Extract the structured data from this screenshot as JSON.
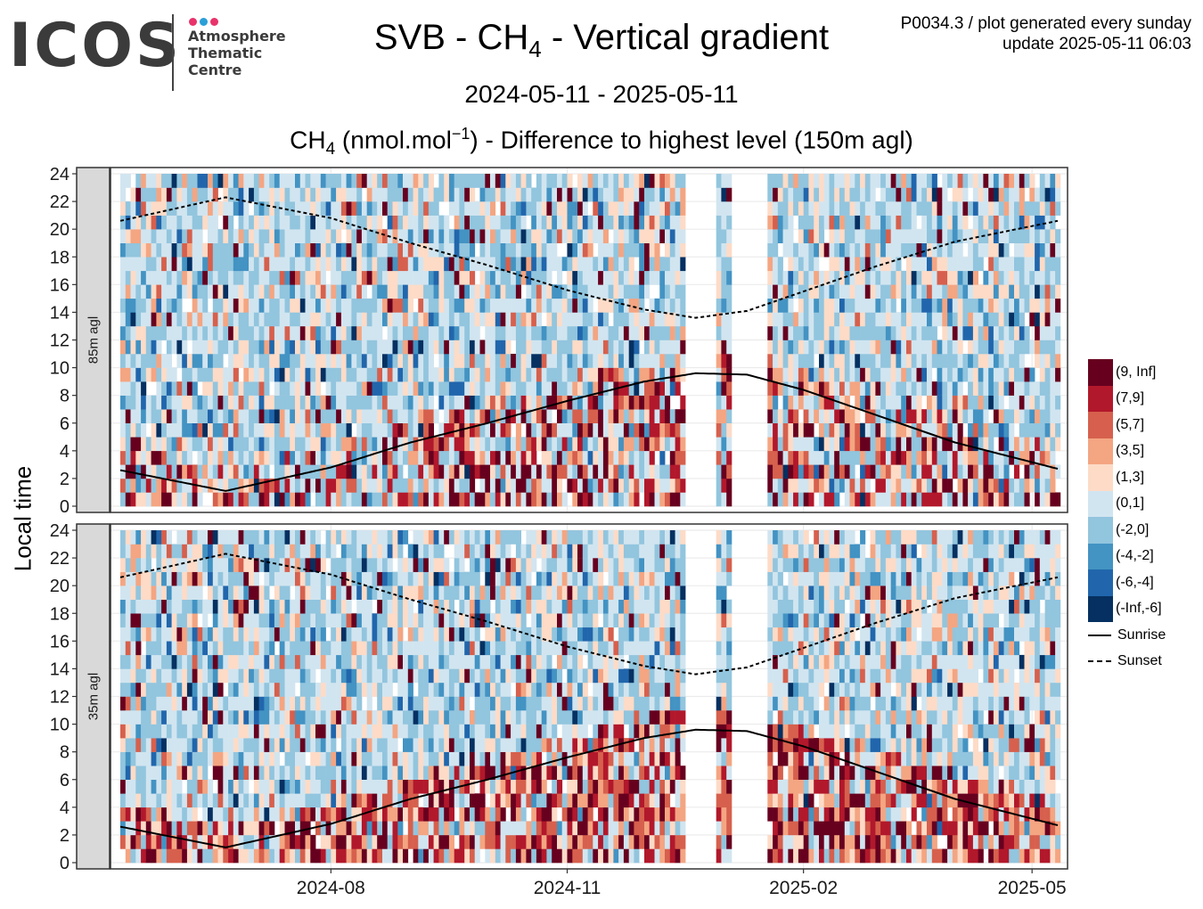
{
  "logo": {
    "wordmark": "ICOS",
    "lines": [
      "Atmosphere",
      "Thematic",
      "Centre"
    ],
    "dot_colors": [
      "#e8336b",
      "#2b9fd8",
      "#e8336b"
    ]
  },
  "title": {
    "pre": "SVB - CH",
    "sub": "4",
    "post": " - Vertical gradient"
  },
  "period": "2024-05-11 - 2025-05-11",
  "subtitle": {
    "pre": "CH",
    "sub": "4",
    "mid": " (nmol.mol",
    "sup": "−1",
    "post": ") - Difference to highest level (150m agl)"
  },
  "meta": {
    "line1": "P0034.3 / plot generated every sunday",
    "line2": "update  2025-05-11 06:03"
  },
  "chart_data": {
    "type": "heatmap",
    "ylabel": "Local time",
    "xlim": [
      "2024-05-11",
      "2025-05-11"
    ],
    "ylim": [
      0,
      24
    ],
    "y_ticks": [
      0,
      2,
      4,
      6,
      8,
      10,
      12,
      14,
      16,
      18,
      20,
      22,
      24
    ],
    "x_ticks": [
      {
        "date": "2024-08-01",
        "label": "2024-08"
      },
      {
        "date": "2024-11-01",
        "label": "2024-11"
      },
      {
        "date": "2025-02-01",
        "label": "2025-02"
      },
      {
        "date": "2025-05-01",
        "label": "2025-05"
      }
    ],
    "panels": [
      {
        "label": "85m agl"
      },
      {
        "label": "35m agl"
      }
    ],
    "missing_periods": [
      [
        "2024-12-16",
        "2024-12-28"
      ],
      [
        "2025-01-04",
        "2025-01-18"
      ]
    ],
    "bins": [
      {
        "label": "(9, Inf]",
        "color": "#67001f"
      },
      {
        "label": "(7,9]",
        "color": "#b2182b"
      },
      {
        "label": "(5,7]",
        "color": "#d6604d"
      },
      {
        "label": "(3,5]",
        "color": "#f4a582"
      },
      {
        "label": "(1,3]",
        "color": "#fddbc7"
      },
      {
        "label": "(0,1]",
        "color": "#d1e5f0"
      },
      {
        "label": "(-2,0]",
        "color": "#92c5de"
      },
      {
        "label": "(-4,-2]",
        "color": "#4393c3"
      },
      {
        "label": "(-6,-4]",
        "color": "#2166ac"
      },
      {
        "label": "(-Inf,-6]",
        "color": "#053061"
      }
    ],
    "lines": [
      {
        "name": "Sunrise",
        "style": "solid",
        "points": [
          [
            "2024-05-11",
            2.6
          ],
          [
            "2024-06-21",
            1.1
          ],
          [
            "2024-08-01",
            2.8
          ],
          [
            "2024-09-01",
            4.6
          ],
          [
            "2024-10-01",
            6.0
          ],
          [
            "2024-11-01",
            7.6
          ],
          [
            "2024-12-01",
            9.0
          ],
          [
            "2024-12-21",
            9.6
          ],
          [
            "2025-01-10",
            9.5
          ],
          [
            "2025-02-01",
            8.4
          ],
          [
            "2025-03-01",
            6.6
          ],
          [
            "2025-04-01",
            4.6
          ],
          [
            "2025-05-11",
            2.7
          ]
        ]
      },
      {
        "name": "Sunset",
        "style": "dashed",
        "points": [
          [
            "2024-05-11",
            20.6
          ],
          [
            "2024-06-21",
            22.3
          ],
          [
            "2024-08-01",
            20.8
          ],
          [
            "2024-09-01",
            19.0
          ],
          [
            "2024-10-01",
            17.4
          ],
          [
            "2024-11-01",
            15.6
          ],
          [
            "2024-12-01",
            14.2
          ],
          [
            "2024-12-21",
            13.6
          ],
          [
            "2025-01-10",
            14.1
          ],
          [
            "2025-02-01",
            15.5
          ],
          [
            "2025-03-01",
            17.3
          ],
          [
            "2025-04-01",
            19.1
          ],
          [
            "2025-05-11",
            20.6
          ]
        ]
      }
    ]
  }
}
